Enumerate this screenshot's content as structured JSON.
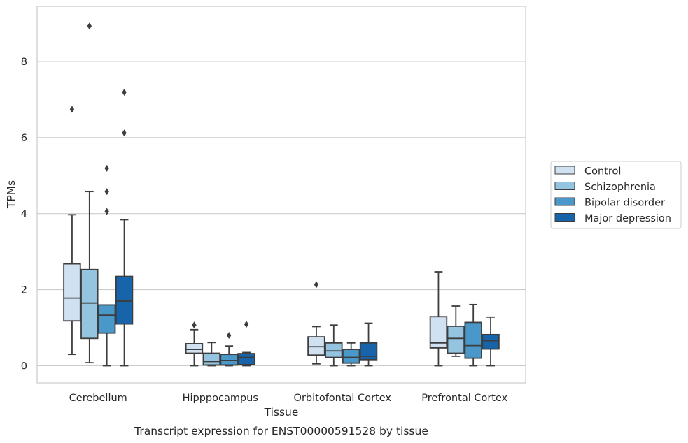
{
  "chart_data": {
    "type": "box",
    "xlabel": "Tissue",
    "ylabel": "TPMs",
    "caption": "Transcript expression for ENST00000591528 by tissue",
    "ylim": [
      -0.45,
      9.45
    ],
    "yticks": [
      0,
      2,
      4,
      6,
      8
    ],
    "grid": "horizontal",
    "legend_position": "right",
    "categories": [
      "Cerebellum",
      "Hipppocampus",
      "Orbitofontal Cortex",
      "Prefrontal Cortex"
    ],
    "series": [
      {
        "name": "Control",
        "color": "#d0e1f2",
        "boxes": [
          {
            "whisker_low": 0.3,
            "q1": 1.18,
            "median": 1.78,
            "q3": 2.68,
            "whisker_high": 3.97,
            "outliers": [
              6.74
            ]
          },
          {
            "whisker_low": 0.0,
            "q1": 0.33,
            "median": 0.43,
            "q3": 0.58,
            "whisker_high": 0.95,
            "outliers": [
              1.07
            ]
          },
          {
            "whisker_low": 0.05,
            "q1": 0.28,
            "median": 0.5,
            "q3": 0.76,
            "whisker_high": 1.03,
            "outliers": [
              2.13
            ]
          },
          {
            "whisker_low": 0.0,
            "q1": 0.47,
            "median": 0.6,
            "q3": 1.29,
            "whisker_high": 2.47,
            "outliers": []
          }
        ]
      },
      {
        "name": "Schizophrenia",
        "color": "#94c4df",
        "boxes": [
          {
            "whisker_low": 0.08,
            "q1": 0.72,
            "median": 1.65,
            "q3": 2.53,
            "whisker_high": 4.58,
            "outliers": [
              8.93
            ]
          },
          {
            "whisker_low": 0.0,
            "q1": 0.02,
            "median": 0.11,
            "q3": 0.33,
            "whisker_high": 0.61,
            "outliers": []
          },
          {
            "whisker_low": 0.0,
            "q1": 0.22,
            "median": 0.39,
            "q3": 0.6,
            "whisker_high": 1.07,
            "outliers": []
          },
          {
            "whisker_low": 0.25,
            "q1": 0.33,
            "median": 0.72,
            "q3": 1.04,
            "whisker_high": 1.57,
            "outliers": []
          }
        ]
      },
      {
        "name": "Bipolar disorder",
        "color": "#4a98c9",
        "boxes": [
          {
            "whisker_low": 0.0,
            "q1": 0.86,
            "median": 1.33,
            "q3": 1.6,
            "whisker_high": 1.6,
            "outliers": [
              5.19,
              4.58,
              4.06
            ]
          },
          {
            "whisker_low": 0.0,
            "q1": 0.02,
            "median": 0.14,
            "q3": 0.3,
            "whisker_high": 0.52,
            "outliers": [
              0.8
            ]
          },
          {
            "whisker_low": 0.0,
            "q1": 0.07,
            "median": 0.22,
            "q3": 0.43,
            "whisker_high": 0.6,
            "outliers": []
          },
          {
            "whisker_low": 0.0,
            "q1": 0.2,
            "median": 0.53,
            "q3": 1.14,
            "whisker_high": 1.61,
            "outliers": []
          }
        ]
      },
      {
        "name": "Major depression",
        "color": "#1764ab",
        "boxes": [
          {
            "whisker_low": 0.0,
            "q1": 1.1,
            "median": 1.7,
            "q3": 2.35,
            "whisker_high": 3.84,
            "outliers": [
              7.19,
              6.12
            ]
          },
          {
            "whisker_low": 0.0,
            "q1": 0.03,
            "median": 0.22,
            "q3": 0.32,
            "whisker_high": 0.35,
            "outliers": [
              1.09
            ]
          },
          {
            "whisker_low": 0.0,
            "q1": 0.16,
            "median": 0.25,
            "q3": 0.6,
            "whisker_high": 1.12,
            "outliers": []
          },
          {
            "whisker_low": 0.0,
            "q1": 0.44,
            "median": 0.66,
            "q3": 0.82,
            "whisker_high": 1.28,
            "outliers": []
          }
        ]
      }
    ]
  }
}
